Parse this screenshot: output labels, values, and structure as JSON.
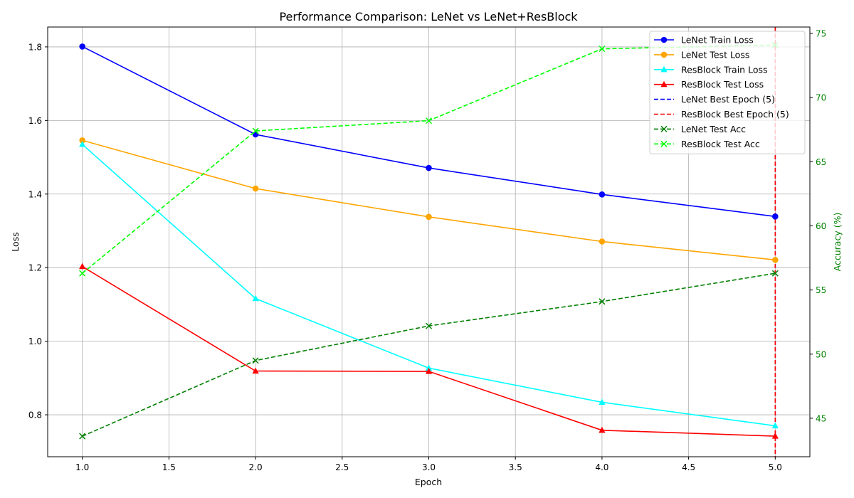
{
  "chart_data": {
    "type": "line",
    "title": "Performance Comparison: LeNet vs LeNet+ResBlock",
    "xlabel": "Epoch",
    "ylabel": "Loss",
    "y2label": "Accuracy (%)",
    "xlim": [
      0.8,
      5.2
    ],
    "ylim": [
      0.686,
      1.854
    ],
    "y2lim": [
      42.0,
      75.5
    ],
    "grid": true,
    "legend_position": "top-right",
    "xticks": [
      "1.0",
      "1.5",
      "2.0",
      "2.5",
      "3.0",
      "3.5",
      "4.0",
      "4.5",
      "5.0"
    ],
    "yticks": [
      "0.8",
      "1.0",
      "1.2",
      "1.4",
      "1.6",
      "1.8"
    ],
    "y2ticks": [
      "45",
      "50",
      "55",
      "60",
      "65",
      "70",
      "75"
    ],
    "x": [
      1,
      2,
      3,
      4,
      5
    ],
    "series": [
      {
        "name": "LeNet Train Loss",
        "axis": "left",
        "color": "#0000ff",
        "dash": false,
        "marker": "circle",
        "values": [
          1.801,
          1.562,
          1.471,
          1.399,
          1.339
        ]
      },
      {
        "name": "LeNet Test Loss",
        "axis": "left",
        "color": "#ffa500",
        "dash": false,
        "marker": "circle",
        "values": [
          1.546,
          1.415,
          1.338,
          1.271,
          1.221
        ]
      },
      {
        "name": "ResBlock Train Loss",
        "axis": "left",
        "color": "#00ffff",
        "dash": false,
        "marker": "triangle",
        "values": [
          1.535,
          1.116,
          0.927,
          0.834,
          0.77
        ]
      },
      {
        "name": "ResBlock Test Loss",
        "axis": "left",
        "color": "#ff0000",
        "dash": false,
        "marker": "triangle",
        "values": [
          1.203,
          0.919,
          0.918,
          0.758,
          0.742
        ]
      },
      {
        "name": "LeNet Test Acc",
        "axis": "right",
        "color": "#008000",
        "dash": true,
        "marker": "x",
        "values": [
          43.6,
          49.5,
          52.2,
          54.1,
          56.3
        ]
      },
      {
        "name": "ResBlock Test Acc",
        "axis": "right",
        "color": "#00ff00",
        "dash": true,
        "marker": "x",
        "values": [
          56.3,
          67.4,
          68.2,
          73.8,
          74.1
        ]
      }
    ],
    "vlines": [
      {
        "name": "LeNet Best Epoch (5)",
        "x": 5,
        "color": "#0000ff"
      },
      {
        "name": "ResBlock Best Epoch (5)",
        "x": 5,
        "color": "#ff0000"
      }
    ],
    "legend": [
      {
        "label": "LeNet Train Loss",
        "color": "#0000ff",
        "dash": false,
        "marker": "circle"
      },
      {
        "label": "LeNet Test Loss",
        "color": "#ffa500",
        "dash": false,
        "marker": "circle"
      },
      {
        "label": "ResBlock Train Loss",
        "color": "#00ffff",
        "dash": false,
        "marker": "triangle"
      },
      {
        "label": "ResBlock Test Loss",
        "color": "#ff0000",
        "dash": false,
        "marker": "triangle"
      },
      {
        "label": "LeNet Best Epoch (5)",
        "color": "#0000ff",
        "dash": true,
        "marker": "none"
      },
      {
        "label": "ResBlock Best Epoch (5)",
        "color": "#ff0000",
        "dash": true,
        "marker": "none"
      },
      {
        "label": "LeNet Test Acc",
        "color": "#008000",
        "dash": true,
        "marker": "x"
      },
      {
        "label": "ResBlock Test Acc",
        "color": "#00ff00",
        "dash": true,
        "marker": "x"
      }
    ],
    "colors": {
      "right_axis": "#008000",
      "grid": "#b0b0b0"
    }
  }
}
